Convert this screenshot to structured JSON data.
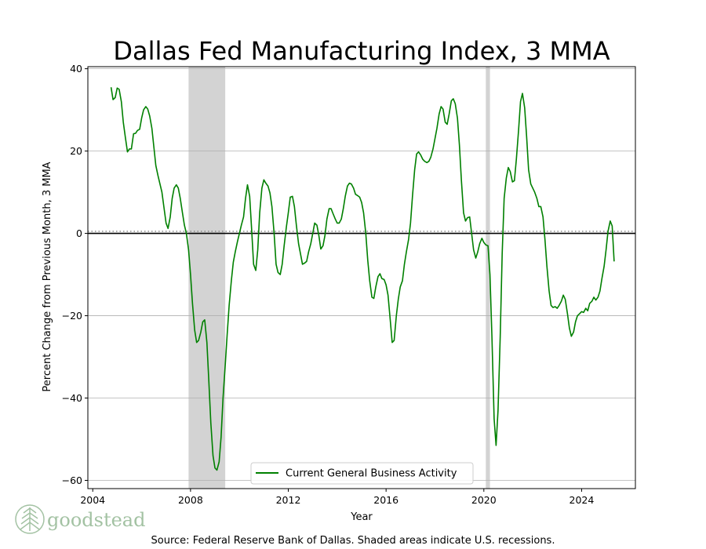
{
  "chart_data": {
    "type": "line",
    "title": "Dallas Fed Manufacturing Index, 3 MMA",
    "xlabel": "Year",
    "ylabel": "Percent Change from Previous Month, 3 MMA",
    "xlim": [
      2003.8,
      2026.2
    ],
    "ylim": [
      -62,
      40.5
    ],
    "x_ticks": [
      2004,
      2008,
      2012,
      2016,
      2020,
      2024
    ],
    "y_ticks": [
      40,
      20,
      0,
      -20,
      -40,
      -60
    ],
    "grid": "horizontal",
    "zero_line": 0,
    "dotted_reference": 0.5,
    "legend_position": "bottom-center",
    "recessions": [
      {
        "start": 2007.92,
        "end": 2009.42
      },
      {
        "start": 2020.08,
        "end": 2020.25
      }
    ],
    "series": [
      {
        "name": "Current General Business Activity",
        "color": "#008000",
        "points": [
          [
            2004.75,
            35.5
          ],
          [
            2004.83,
            32.5
          ],
          [
            2004.92,
            33.0
          ],
          [
            2005.0,
            35.3
          ],
          [
            2005.08,
            35.0
          ],
          [
            2005.17,
            32.0
          ],
          [
            2005.25,
            27.0
          ],
          [
            2005.33,
            23.5
          ],
          [
            2005.42,
            19.8
          ],
          [
            2005.5,
            20.5
          ],
          [
            2005.58,
            20.5
          ],
          [
            2005.67,
            24.2
          ],
          [
            2005.75,
            24.3
          ],
          [
            2005.83,
            25.0
          ],
          [
            2005.92,
            25.3
          ],
          [
            2006.0,
            28.0
          ],
          [
            2006.08,
            30.0
          ],
          [
            2006.17,
            30.8
          ],
          [
            2006.25,
            30.2
          ],
          [
            2006.33,
            28.5
          ],
          [
            2006.42,
            25.5
          ],
          [
            2006.5,
            21.0
          ],
          [
            2006.58,
            16.5
          ],
          [
            2006.67,
            14.0
          ],
          [
            2006.75,
            12.0
          ],
          [
            2006.83,
            10.0
          ],
          [
            2006.92,
            6.0
          ],
          [
            2007.0,
            2.5
          ],
          [
            2007.08,
            1.2
          ],
          [
            2007.17,
            4.0
          ],
          [
            2007.25,
            8.5
          ],
          [
            2007.33,
            11.0
          ],
          [
            2007.42,
            11.8
          ],
          [
            2007.5,
            11.0
          ],
          [
            2007.58,
            8.5
          ],
          [
            2007.67,
            5.0
          ],
          [
            2007.75,
            2.0
          ],
          [
            2007.83,
            0.0
          ],
          [
            2007.92,
            -4.0
          ],
          [
            2008.0,
            -10.0
          ],
          [
            2008.08,
            -17.0
          ],
          [
            2008.17,
            -23.5
          ],
          [
            2008.25,
            -26.5
          ],
          [
            2008.33,
            -26.0
          ],
          [
            2008.42,
            -24.0
          ],
          [
            2008.5,
            -21.5
          ],
          [
            2008.58,
            -21.0
          ],
          [
            2008.67,
            -26.5
          ],
          [
            2008.75,
            -36.0
          ],
          [
            2008.83,
            -46.0
          ],
          [
            2008.92,
            -54.0
          ],
          [
            2009.0,
            -57.0
          ],
          [
            2009.08,
            -57.5
          ],
          [
            2009.17,
            -55.5
          ],
          [
            2009.25,
            -49.5
          ],
          [
            2009.33,
            -40.0
          ],
          [
            2009.42,
            -32.0
          ],
          [
            2009.5,
            -24.5
          ],
          [
            2009.58,
            -17.5
          ],
          [
            2009.67,
            -11.5
          ],
          [
            2009.75,
            -7.0
          ],
          [
            2009.83,
            -4.5
          ],
          [
            2009.92,
            -2.0
          ],
          [
            2010.0,
            0.0
          ],
          [
            2010.08,
            2.0
          ],
          [
            2010.17,
            4.0
          ],
          [
            2010.25,
            8.5
          ],
          [
            2010.33,
            11.8
          ],
          [
            2010.42,
            9.0
          ],
          [
            2010.5,
            1.0
          ],
          [
            2010.58,
            -7.5
          ],
          [
            2010.67,
            -9.0
          ],
          [
            2010.75,
            -4.0
          ],
          [
            2010.83,
            5.0
          ],
          [
            2010.92,
            11.0
          ],
          [
            2011.0,
            13.0
          ],
          [
            2011.08,
            12.2
          ],
          [
            2011.17,
            11.5
          ],
          [
            2011.25,
            9.8
          ],
          [
            2011.33,
            6.5
          ],
          [
            2011.42,
            0.0
          ],
          [
            2011.5,
            -7.5
          ],
          [
            2011.58,
            -9.5
          ],
          [
            2011.67,
            -10.0
          ],
          [
            2011.75,
            -7.5
          ],
          [
            2011.83,
            -3.0
          ],
          [
            2011.92,
            1.5
          ],
          [
            2012.0,
            5.0
          ],
          [
            2012.08,
            8.8
          ],
          [
            2012.17,
            9.0
          ],
          [
            2012.25,
            6.5
          ],
          [
            2012.33,
            2.0
          ],
          [
            2012.42,
            -2.5
          ],
          [
            2012.5,
            -5.0
          ],
          [
            2012.58,
            -7.5
          ],
          [
            2012.67,
            -7.2
          ],
          [
            2012.75,
            -6.8
          ],
          [
            2012.83,
            -4.5
          ],
          [
            2012.92,
            -2.5
          ],
          [
            2013.0,
            0.0
          ],
          [
            2013.08,
            2.5
          ],
          [
            2013.17,
            2.0
          ],
          [
            2013.25,
            -0.5
          ],
          [
            2013.33,
            -3.8
          ],
          [
            2013.42,
            -3.0
          ],
          [
            2013.5,
            -0.5
          ],
          [
            2013.58,
            3.5
          ],
          [
            2013.67,
            6.0
          ],
          [
            2013.75,
            6.0
          ],
          [
            2013.83,
            4.8
          ],
          [
            2013.92,
            3.5
          ],
          [
            2014.0,
            2.5
          ],
          [
            2014.08,
            2.5
          ],
          [
            2014.17,
            3.5
          ],
          [
            2014.25,
            6.0
          ],
          [
            2014.33,
            9.0
          ],
          [
            2014.42,
            11.5
          ],
          [
            2014.5,
            12.2
          ],
          [
            2014.58,
            12.0
          ],
          [
            2014.67,
            11.0
          ],
          [
            2014.75,
            9.5
          ],
          [
            2014.83,
            9.2
          ],
          [
            2014.92,
            8.8
          ],
          [
            2015.0,
            7.5
          ],
          [
            2015.08,
            5.0
          ],
          [
            2015.17,
            0.0
          ],
          [
            2015.25,
            -6.5
          ],
          [
            2015.33,
            -11.5
          ],
          [
            2015.42,
            -15.5
          ],
          [
            2015.5,
            -15.8
          ],
          [
            2015.58,
            -13.0
          ],
          [
            2015.67,
            -10.5
          ],
          [
            2015.75,
            -9.8
          ],
          [
            2015.83,
            -11.0
          ],
          [
            2015.92,
            -11.2
          ],
          [
            2016.0,
            -12.5
          ],
          [
            2016.08,
            -15.0
          ],
          [
            2016.17,
            -21.0
          ],
          [
            2016.25,
            -26.5
          ],
          [
            2016.33,
            -26.0
          ],
          [
            2016.42,
            -20.0
          ],
          [
            2016.5,
            -16.0
          ],
          [
            2016.58,
            -13.0
          ],
          [
            2016.67,
            -11.5
          ],
          [
            2016.75,
            -7.5
          ],
          [
            2016.83,
            -4.5
          ],
          [
            2016.92,
            -1.5
          ],
          [
            2017.0,
            2.5
          ],
          [
            2017.08,
            9.0
          ],
          [
            2017.17,
            15.5
          ],
          [
            2017.25,
            19.3
          ],
          [
            2017.33,
            19.8
          ],
          [
            2017.42,
            19.0
          ],
          [
            2017.5,
            18.0
          ],
          [
            2017.58,
            17.5
          ],
          [
            2017.67,
            17.2
          ],
          [
            2017.75,
            17.5
          ],
          [
            2017.83,
            18.5
          ],
          [
            2017.92,
            20.5
          ],
          [
            2018.0,
            23.0
          ],
          [
            2018.08,
            25.5
          ],
          [
            2018.17,
            29.0
          ],
          [
            2018.25,
            30.8
          ],
          [
            2018.33,
            30.2
          ],
          [
            2018.42,
            27.0
          ],
          [
            2018.5,
            26.5
          ],
          [
            2018.58,
            29.0
          ],
          [
            2018.67,
            32.2
          ],
          [
            2018.75,
            32.7
          ],
          [
            2018.83,
            31.5
          ],
          [
            2018.92,
            28.0
          ],
          [
            2019.0,
            21.5
          ],
          [
            2019.08,
            13.0
          ],
          [
            2019.17,
            5.0
          ],
          [
            2019.25,
            3.0
          ],
          [
            2019.33,
            3.8
          ],
          [
            2019.42,
            4.0
          ],
          [
            2019.5,
            0.0
          ],
          [
            2019.58,
            -4.0
          ],
          [
            2019.67,
            -6.0
          ],
          [
            2019.75,
            -4.5
          ],
          [
            2019.83,
            -2.5
          ],
          [
            2019.92,
            -1.2
          ],
          [
            2020.0,
            -2.2
          ],
          [
            2020.08,
            -2.8
          ],
          [
            2020.17,
            -3.0
          ],
          [
            2020.25,
            -10.0
          ],
          [
            2020.33,
            -25.0
          ],
          [
            2020.42,
            -45.0
          ],
          [
            2020.5,
            -51.5
          ],
          [
            2020.58,
            -43.0
          ],
          [
            2020.67,
            -25.0
          ],
          [
            2020.75,
            -5.0
          ],
          [
            2020.83,
            8.5
          ],
          [
            2020.92,
            13.5
          ],
          [
            2021.0,
            16.0
          ],
          [
            2021.08,
            15.0
          ],
          [
            2021.17,
            12.5
          ],
          [
            2021.25,
            12.8
          ],
          [
            2021.33,
            18.0
          ],
          [
            2021.42,
            25.0
          ],
          [
            2021.5,
            32.0
          ],
          [
            2021.58,
            34.0
          ],
          [
            2021.67,
            30.5
          ],
          [
            2021.75,
            23.5
          ],
          [
            2021.83,
            15.5
          ],
          [
            2021.92,
            12.0
          ],
          [
            2022.0,
            11.0
          ],
          [
            2022.08,
            10.0
          ],
          [
            2022.17,
            8.5
          ],
          [
            2022.25,
            6.5
          ],
          [
            2022.33,
            6.5
          ],
          [
            2022.42,
            4.0
          ],
          [
            2022.5,
            -1.5
          ],
          [
            2022.58,
            -8.0
          ],
          [
            2022.67,
            -14.0
          ],
          [
            2022.75,
            -17.5
          ],
          [
            2022.83,
            -18.0
          ],
          [
            2022.92,
            -17.8
          ],
          [
            2023.0,
            -18.2
          ],
          [
            2023.08,
            -17.5
          ],
          [
            2023.17,
            -16.5
          ],
          [
            2023.25,
            -15.0
          ],
          [
            2023.33,
            -16.0
          ],
          [
            2023.42,
            -19.5
          ],
          [
            2023.5,
            -23.0
          ],
          [
            2023.58,
            -25.0
          ],
          [
            2023.67,
            -24.0
          ],
          [
            2023.75,
            -21.5
          ],
          [
            2023.83,
            -20.0
          ],
          [
            2023.92,
            -19.5
          ],
          [
            2024.0,
            -19.0
          ],
          [
            2024.08,
            -19.2
          ],
          [
            2024.17,
            -18.2
          ],
          [
            2024.25,
            -18.8
          ],
          [
            2024.33,
            -17.0
          ],
          [
            2024.42,
            -16.5
          ],
          [
            2024.5,
            -15.5
          ],
          [
            2024.58,
            -16.2
          ],
          [
            2024.67,
            -15.5
          ],
          [
            2024.75,
            -14.0
          ],
          [
            2024.83,
            -11.0
          ],
          [
            2024.92,
            -8.0
          ],
          [
            2025.0,
            -4.0
          ],
          [
            2025.08,
            0.5
          ],
          [
            2025.17,
            3.0
          ],
          [
            2025.25,
            1.8
          ],
          [
            2025.33,
            -6.8
          ]
        ]
      }
    ]
  },
  "footer": {
    "source": "Source: Federal Reserve Bank of Dallas. Shaded areas indicate U.S. recessions."
  },
  "logo": {
    "text": "goodstead",
    "icon": "pine-tree-icon",
    "color": "#a3c2a3"
  }
}
